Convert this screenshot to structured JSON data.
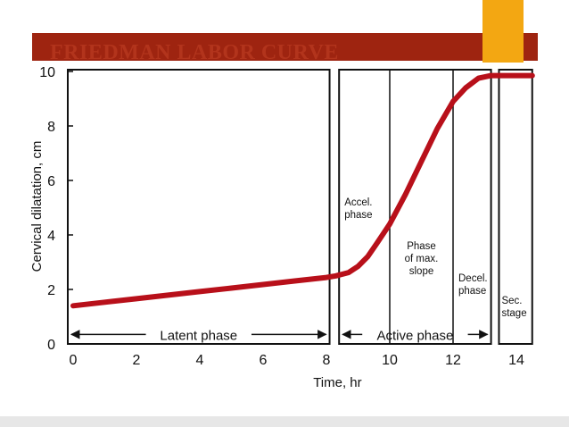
{
  "slide": {
    "title": "FRIEDMAN LABOR CURVE",
    "banner_color": "#9e2410",
    "title_color": "#b2341c",
    "accent_color": "#f3a712",
    "footer_color": "#e7e7e7"
  },
  "chart_data": {
    "type": "line",
    "title": "FRIEDMAN LABOR CURVE",
    "xlabel": "Time, hr",
    "ylabel": "Cervical dilatation, cm",
    "xlim": [
      0,
      14.5
    ],
    "ylim": [
      0,
      10
    ],
    "xticks": [
      "0",
      "2",
      "4",
      "6",
      "8",
      "10",
      "12",
      "14"
    ],
    "yticks": [
      "0",
      "2",
      "4",
      "6",
      "8",
      "10"
    ],
    "grid": false,
    "line_color": "#b8101a",
    "series": [
      {
        "x": [
          0,
          1,
          2,
          3,
          4,
          5,
          6,
          7,
          8,
          8.3,
          8.7,
          9.0,
          9.3,
          9.6,
          10.0,
          10.5,
          11.0,
          11.5,
          12.0,
          12.4,
          12.8,
          13.2,
          13.6,
          14.0,
          14.5
        ],
        "y": [
          1.4,
          1.53,
          1.66,
          1.79,
          1.92,
          2.05,
          2.18,
          2.31,
          2.44,
          2.5,
          2.62,
          2.85,
          3.2,
          3.7,
          4.4,
          5.5,
          6.7,
          7.9,
          8.9,
          9.4,
          9.75,
          9.85,
          9.85,
          9.85,
          9.85
        ]
      }
    ],
    "phases": [
      {
        "label": "Accel.\nphase",
        "x_start": 8.4,
        "x_end": 10
      },
      {
        "label": "Phase\nof max.\nslope",
        "x_start": 10,
        "x_end": 12
      },
      {
        "label": "Decel.\nphase",
        "x_start": 12,
        "x_end": 13.2
      },
      {
        "label": "Sec.\nstage",
        "x_start": 13.45,
        "x_end": 14.5
      }
    ],
    "annotations": [
      {
        "text": "Latent phase",
        "x_start": 0,
        "x_end": 8.1,
        "y": 0.35
      },
      {
        "text": "Active phase",
        "x_start": 8.4,
        "x_end": 13.2,
        "y": 0.35
      }
    ]
  }
}
